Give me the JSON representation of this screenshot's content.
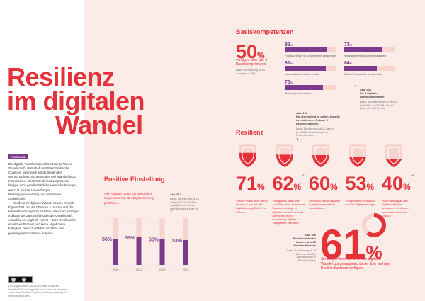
{
  "title": [
    "Resilienz",
    "im digitalen",
    "Wandel"
  ],
  "relevanz": {
    "badge": "RELEVANZ",
    "p1": "Die digitale Transformation bietet Bürger*innen, Gesellschaft, Wirtschaft und Staat zahlreiche Chancen: Von neuen Möglichkeiten der Wertschöpfung, Sicherung des Wohlstands bis zu Innovationen. Doch Transformationsprozesse bringen auch gesellschaftliche Herausforderungen, wie z. B. soziale Verwerfungen, Meinungspolarisierung und wachsende Ungleichheit.",
    "p2": "Resilienz im digitalen Wandel ist eine zentrale Eigenschaft, um die Chancen zu nutzen und die Herausforderungen zu meistern, sie ist ein wichtiger Indikator der Zukunftsfähigkeit der Gesellschaft. Aktuell ist sie ungleich verteilt – doch Resilienz ist ein aktiver Prozess und keine angeborene Fähigkeit. Diese zu stärken ist daher eine gesamtgesellschaftliche Aufgabe."
  },
  "footer": {
    "license_icon": "creative-commons-by-icon",
    "source": "D21-Digital-Index 2023/2024, eine Studie der Initiative D21, durchgeführt von Kantar, ist lizenziert unter einer Creative Commons Namensnennung 4.0 International Lizenz."
  },
  "basis": {
    "heading": "Basiskompetenzen",
    "big": "50",
    "unit": "%",
    "sub": "verfügen über alle 5 Basiskompetenzen.",
    "note": "Basis: Bevölkerung ab 14 Jahren (n=6.455)",
    "items": [
      {
        "value": 82,
        "label": "Fotos/Videos mit Smartphone versenden"
      },
      {
        "value": 73,
        "label": "Smartphonefunktionen anpassen"
      },
      {
        "value": 81,
        "label": "Informationen online finden"
      },
      {
        "value": 64,
        "label": "Starke Passwörter verwenden"
      },
      {
        "value": 75,
        "label": "Textprogramm nutzen"
      }
    ],
    "abb": {
      "arrow": "↖",
      "title": "Abb. 034",
      "sub": "Die 5 digitalen Basiskompetenzen",
      "note": "Basis: Bevölkerung ab 14 Jahren (n=6.455); Top2 (Trifft voll und ganz zu/Trifft eher zu)"
    }
  },
  "resilienz": {
    "heading": "Resilienz",
    "abb": {
      "title": "Abb. 015",
      "sub": "Um als resilient zu gelten, braucht es mindestens 3 dieser 5 Resilienzfaktoren",
      "note": "Basis: Bevölkerung ab 14 Jahren (n=6.455); Abweichungen in Prozentpunkten",
      "arrow": "↘"
    },
    "items": [
      {
        "value": 71,
        "delta": "",
        "quote": "»Jede*r muss auch selbst etwas tun, um mit der Digitalisierung Schritt zu halten.«"
      },
      {
        "value": 62,
        "delta": "−3 ↓",
        "quote": "»Ich glaube, dass man zukünftig mind. technische Zusammenhänge im Digitalen verstehen muss oder sogar noch komplexere digitale Fähigkeiten braucht.«"
      },
      {
        "value": 60,
        "delta": "",
        "quote": "»Ich kann meine digitalen Kompetenzen kritisch einschätzen.«"
      },
      {
        "value": 53,
        "delta": "",
        "quote": "»Ich profitiere persönlich von der Digitalisierung.«"
      },
      {
        "value": 40,
        "delta": "−5 ↓",
        "quote": "»Mich ständig an den digitalen Wandel anpassen zu müssen, setzt mich nicht unter Druck.«"
      }
    ]
  },
  "positive": {
    "heading": "Positive Einstellung",
    "quote": "»Ich glaube, dass ich persönlich insgesamt von der Digitalisierung profitiere.«",
    "abb": {
      "title": "Abb. 013",
      "note": "Basis: Bevölkerung ab 14 Jahren (2023: n=6.455); Top2 (Stimme voll und ganz zu/Stimme eher zu)",
      "arrow": "↙"
    }
  },
  "chart_data": {
    "type": "bar",
    "categories": [
      "2020",
      "2021",
      "2022",
      "2023"
    ],
    "values": [
      56,
      59,
      55,
      53
    ],
    "unit": "%",
    "ylim": [
      0,
      100
    ],
    "colors": {
      "bar": "#7b3a8c",
      "track": "#f8d4cf"
    }
  },
  "index": {
    "big": "61",
    "unit": "%",
    "delta": "−1 ↓",
    "text": "der Bürger*innen sind für den digitalen Wandel gut gewappnet, da sie über wichtige Resilienzfaktoren verfügen.",
    "abb": {
      "arrow": "→",
      "title": "Abb. 016",
      "sub": "Resilienzindikator basierend auf 5 Resilienzfaktoren",
      "note": "Basis: Bevölkerung ab 14 Jahren (n=6.455); Abweichungen in Prozentpunkten"
    },
    "donut_value": 61
  },
  "colors": {
    "red": "#e4313a",
    "purple": "#7b3a8c",
    "pink": "#fcece8"
  }
}
